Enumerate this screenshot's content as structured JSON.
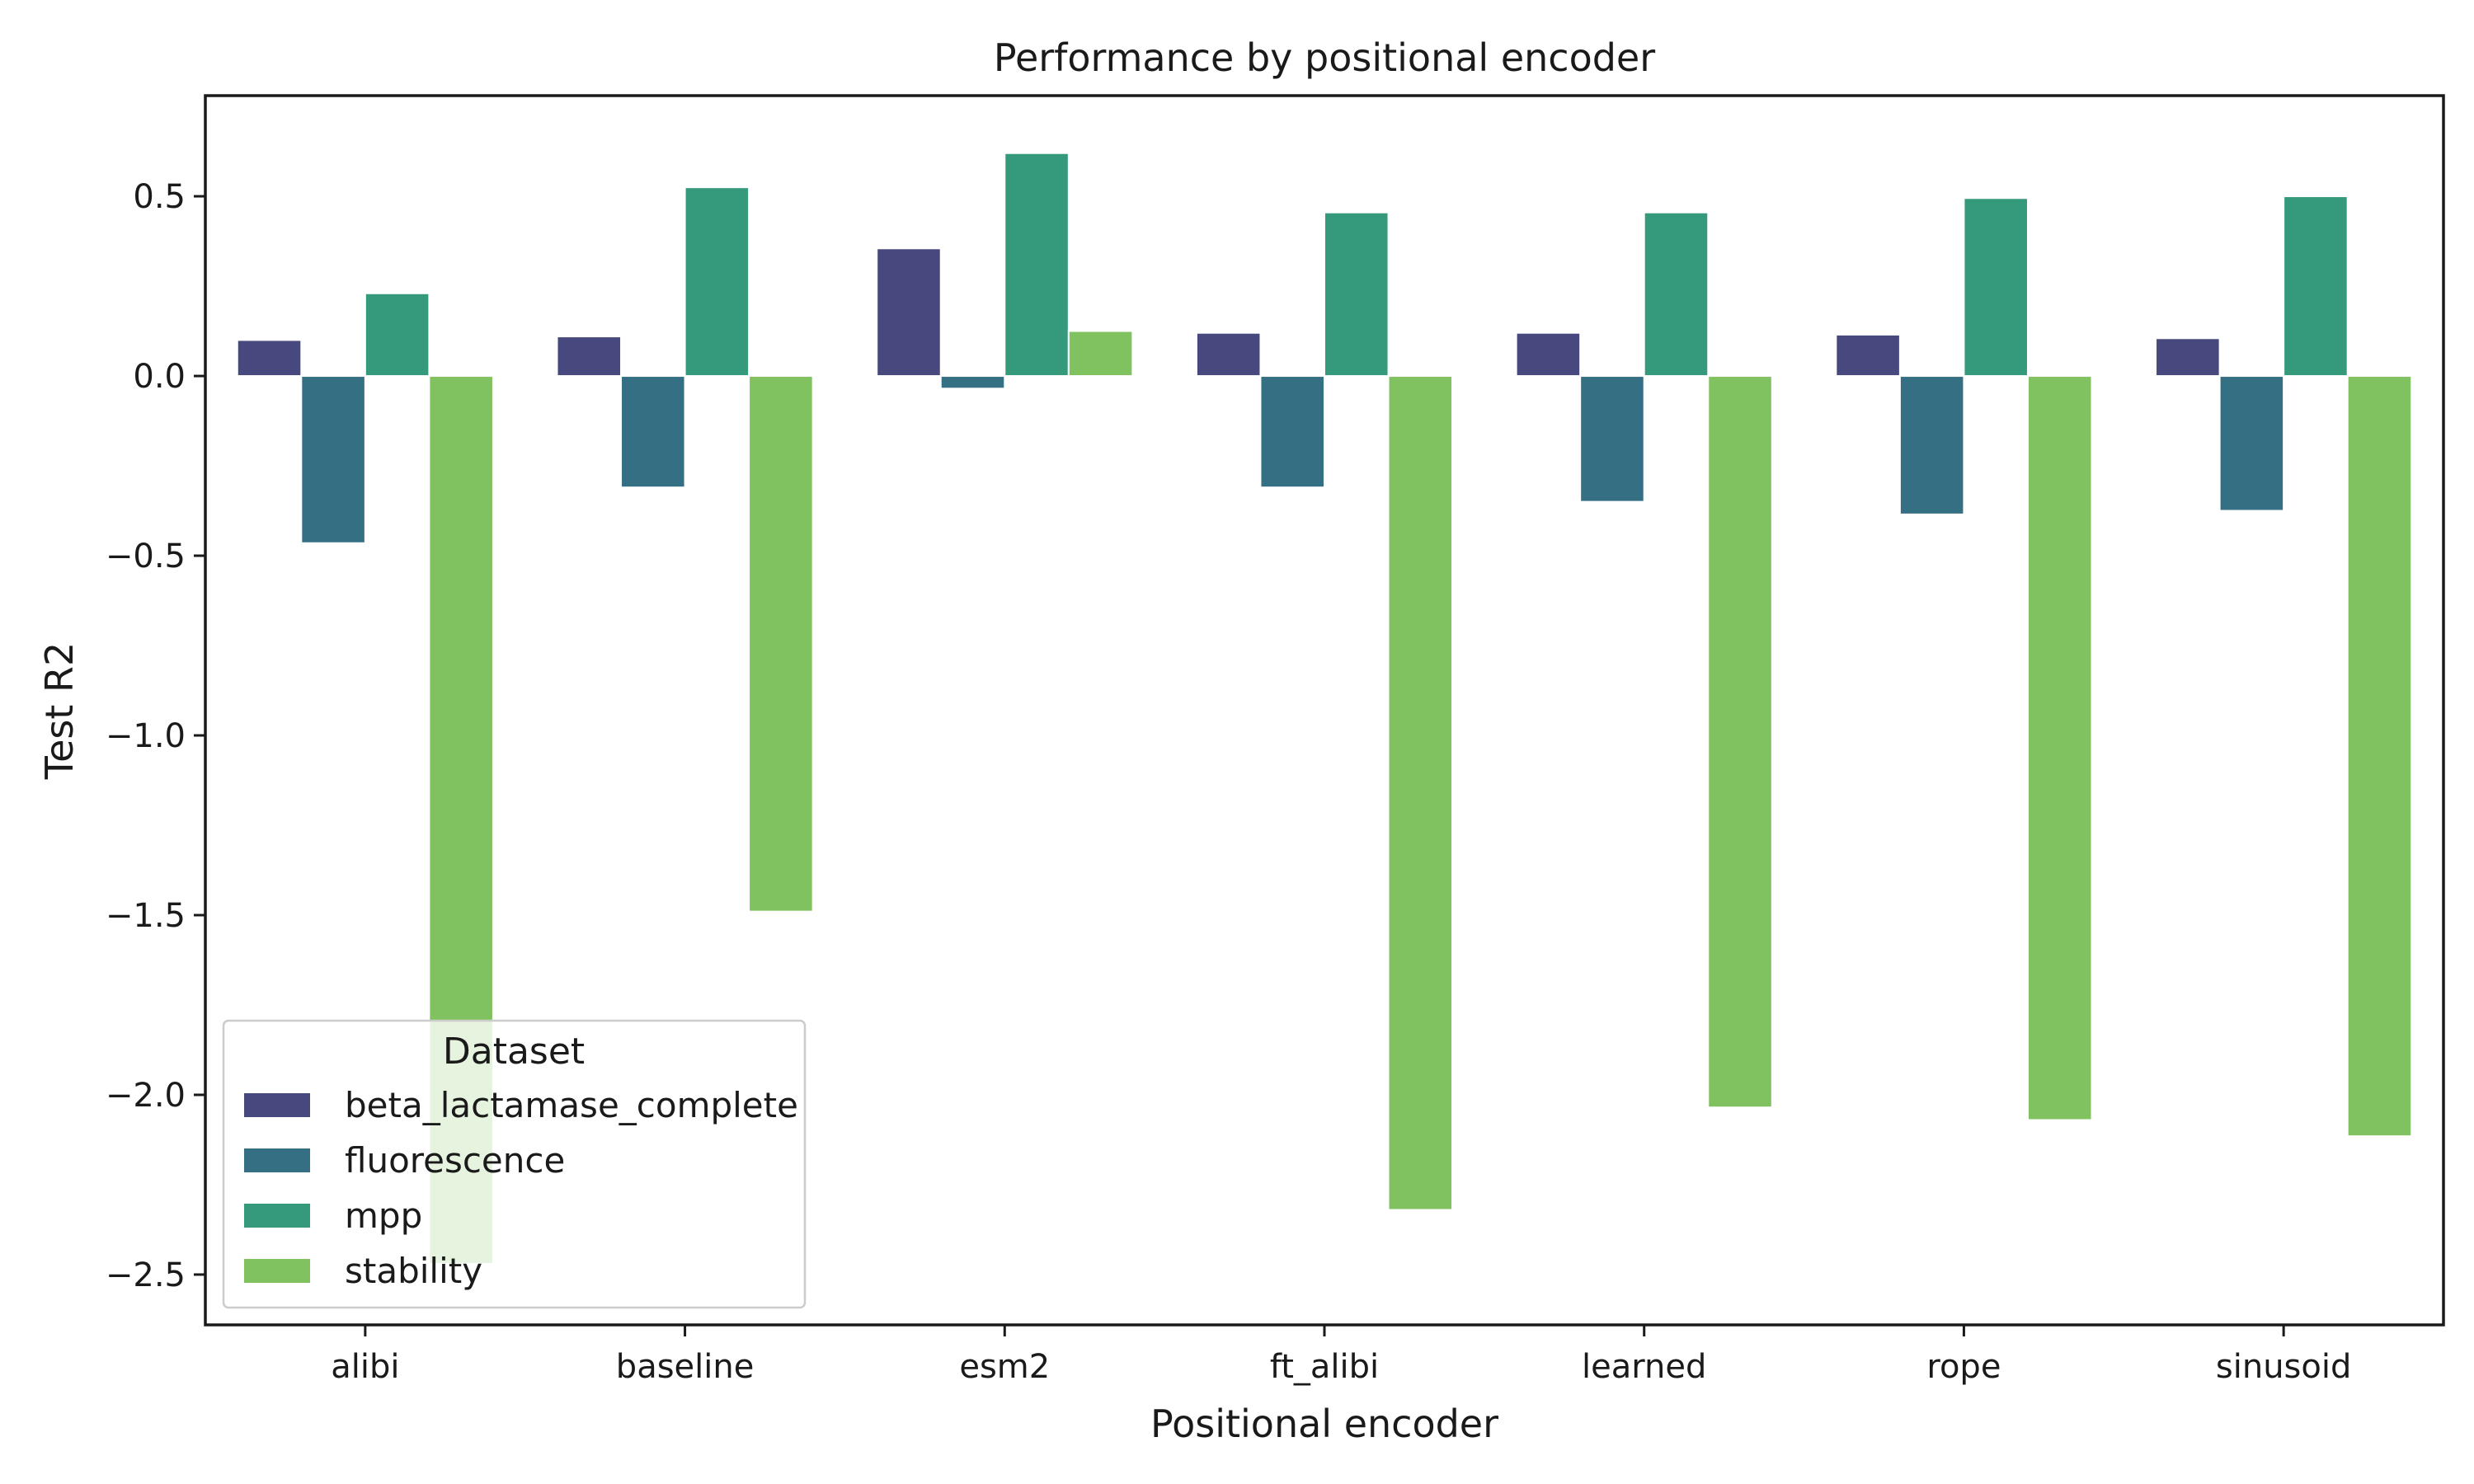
{
  "chart_data": {
    "type": "bar",
    "title": "Performance by positional encoder",
    "xlabel": "Positional encoder",
    "ylabel": "Test R2",
    "categories": [
      "alibi",
      "baseline",
      "esm2",
      "ft_alibi",
      "learned",
      "rope",
      "sinusoid"
    ],
    "series": [
      {
        "name": "beta_lactamase_complete",
        "color": "#46487e",
        "values": [
          0.1,
          0.11,
          0.355,
          0.12,
          0.12,
          0.115,
          0.105
        ]
      },
      {
        "name": "fluorescence",
        "color": "#346f84",
        "values": [
          -0.465,
          -0.31,
          -0.035,
          -0.31,
          -0.35,
          -0.385,
          -0.375
        ]
      },
      {
        "name": "mpp",
        "color": "#35997b",
        "values": [
          0.23,
          0.525,
          0.62,
          0.455,
          0.455,
          0.495,
          0.5
        ]
      },
      {
        "name": "stability",
        "color": "#80c25f",
        "values": [
          -2.47,
          -1.49,
          0.125,
          -2.32,
          -2.035,
          -2.07,
          -2.115
        ]
      }
    ],
    "ylim": [
      -2.64,
      0.78
    ],
    "yticks": [
      0.5,
      0.0,
      -0.5,
      -1.0,
      -1.5,
      -2.0,
      -2.5
    ],
    "ytick_labels": [
      "0.5",
      "0.0",
      "−0.5",
      "−1.0",
      "−1.5",
      "−2.0",
      "−2.5"
    ],
    "legend": {
      "title": "Dataset",
      "placement": "lower-left"
    },
    "grid": false
  }
}
